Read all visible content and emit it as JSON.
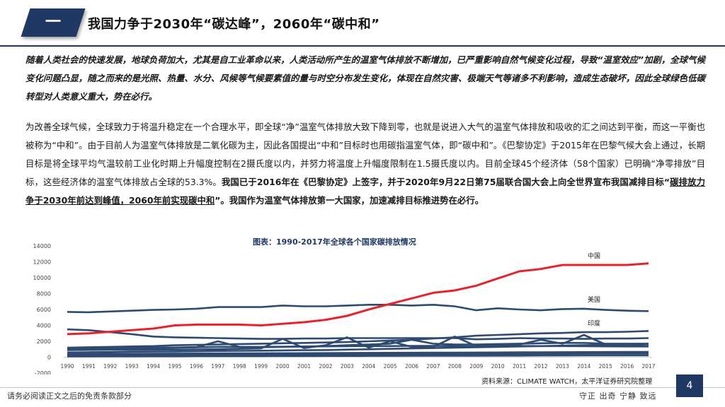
{
  "header": {
    "badge": "一",
    "title": "我国力争于2030年“碳达峰”，2060年“碳中和”"
  },
  "paragraph1": "随着人类社会的快速发展，地球负荷加大，尤其是自工业革命以来，人类活动所产生的温室气体排放不断增加，已严重影响自然气候变化过程，导致“温室效应”加剧，全球气候变化问题凸显，随之而来的是光照、热量、水分、风候等气候要素值的量与时空分布发生变化，体现在自然灾害、极端天气等诸多不利影响，造成生态破坏，因此全球绿色低碳转型对人类意义重大，势在必行。",
  "paragraph2": {
    "normal": "为改善全球气候，全球致力于将温升稳定在一个合理水平，即全球“净”温室气体排放大致下降到零，也就是说进入大气的温室气体排放和吸收的汇之间达到平衡，而这一平衡也被称为“中和”。由于目前人为温室气体排放是二氧化碳为主，因此各国提出“中和”目标时也用碳指温室气体，即“碳中和”。《巴黎协定》于2015年在巴黎气候大会上通过，长期目标是将全球平均气温较前工业化时期上升幅度控制在2摄氏度以内，并努力将温度上升幅度限制在1.5摄氏度以内。目前全球45个经济体（58个国家）已明确“净零排放”目标，这些经济体的温室气体排放占全球的53.3%。",
    "bold": "我国已于2016年在《巴黎协定》上签字，并于2020年9月22日第75届联合国大会上向全世界宣布我国减排目标“",
    "underline": "碳排放力争于2030年前达到峰值，2060年前实现碳中和",
    "bold_end": "”。我国作为温室气体排放第一大国家，加速减排目标推进势在必行。"
  },
  "chart_data": {
    "type": "line",
    "title": "图表：1990-2017年全球各个国家碳排放情况",
    "xlabel": "",
    "ylabel": "",
    "ylim": [
      -2000,
      14000
    ],
    "yticks": [
      -2000,
      0,
      2000,
      4000,
      6000,
      8000,
      10000,
      12000,
      14000
    ],
    "x": [
      "1990",
      "1991",
      "1992",
      "1993",
      "1994",
      "1995",
      "1996",
      "1997",
      "1998",
      "1999",
      "2000",
      "2001",
      "2002",
      "2003",
      "2004",
      "2005",
      "2006",
      "2007",
      "2008",
      "2009",
      "2010",
      "2011",
      "2012",
      "2013",
      "2014",
      "2015",
      "2016",
      "2017"
    ],
    "grid": false,
    "series": [
      {
        "name": "中国",
        "color": "#e8222a",
        "label": "中国",
        "values": [
          2900,
          3000,
          3200,
          3400,
          3600,
          4000,
          4100,
          4100,
          4100,
          4000,
          4200,
          4400,
          4700,
          5200,
          6000,
          6700,
          7400,
          8100,
          8400,
          9000,
          9900,
          10800,
          11100,
          11600,
          11600,
          11600,
          11600,
          11800
        ]
      },
      {
        "name": "美国",
        "color": "#2e4a70",
        "label": "美国",
        "values": [
          5700,
          5650,
          5750,
          5850,
          5950,
          6000,
          6100,
          6300,
          6300,
          6300,
          6500,
          6400,
          6400,
          6500,
          6600,
          6600,
          6500,
          6600,
          6400,
          5900,
          6150,
          6000,
          5900,
          6050,
          6100,
          5950,
          5850,
          5800
        ]
      },
      {
        "name": "印度",
        "color": "#2e4a70",
        "label": "印度",
        "values": [
          1200,
          1250,
          1300,
          1350,
          1400,
          1500,
          1550,
          1600,
          1650,
          1700,
          1750,
          1800,
          1850,
          1900,
          2000,
          2100,
          2200,
          2350,
          2500,
          2700,
          2800,
          2900,
          3000,
          3050,
          3150,
          3150,
          3200,
          3300
        ]
      },
      {
        "name": "",
        "color": "#2e4a70",
        "label": "",
        "values": [
          3500,
          3400,
          3150,
          2900,
          2600,
          2500,
          2450,
          2400,
          2350,
          2300,
          2300,
          2350,
          2350,
          2400,
          2400,
          2400,
          2400,
          2400,
          2400,
          2250,
          2300,
          2400,
          2350,
          2350,
          2300,
          2350,
          2350,
          2400
        ]
      },
      {
        "name": "",
        "color": "#2e4a70",
        "label": "",
        "values": [
          1100,
          1120,
          1150,
          1180,
          1200,
          1220,
          1250,
          1300,
          1300,
          1300,
          1320,
          1340,
          1360,
          1380,
          1400,
          1400,
          1420,
          1420,
          1400,
          1380,
          1400,
          1420,
          1400,
          1400,
          1380,
          1360,
          1350,
          1350
        ]
      },
      {
        "name": "",
        "color": "#2e4a70",
        "label": "",
        "values": [
          1000,
          1050,
          1100,
          1100,
          1150,
          1200,
          1250,
          2000,
          1300,
          1250,
          1300,
          1350,
          1400,
          1500,
          1600,
          1700,
          2200,
          1700,
          1600,
          1600,
          1650,
          1700,
          1750,
          1800,
          1800,
          1700,
          1700,
          1700
        ]
      },
      {
        "name": "",
        "color": "#2e4a70",
        "label": "",
        "values": [
          900,
          920,
          930,
          940,
          950,
          960,
          980,
          1000,
          1050,
          1100,
          2300,
          1150,
          1500,
          2500,
          1200,
          2000,
          1300,
          1300,
          2600,
          1400,
          1500,
          1600,
          2200,
          1700,
          2800,
          1600,
          1500,
          1400
        ]
      },
      {
        "name": "",
        "color": "#2e4a70",
        "label": "",
        "values": [
          600,
          620,
          650,
          680,
          700,
          720,
          750,
          780,
          800,
          820,
          850,
          880,
          900,
          950,
          1000,
          1050,
          1100,
          1150,
          1200,
          1250,
          1300,
          1350,
          1400,
          1450,
          1500,
          1550,
          1600,
          1650
        ]
      },
      {
        "name": "",
        "color": "#2e4a70",
        "label": "",
        "values": [
          400,
          410,
          420,
          430,
          440,
          450,
          460,
          470,
          480,
          490,
          500,
          510,
          520,
          530,
          540,
          550,
          560,
          570,
          580,
          590,
          600,
          610,
          620,
          630,
          640,
          650,
          660,
          670
        ]
      },
      {
        "name": "",
        "color": "#2e4a70",
        "label": "",
        "values": [
          200,
          210,
          220,
          230,
          240,
          250,
          260,
          270,
          280,
          290,
          300,
          310,
          320,
          330,
          340,
          350,
          360,
          370,
          380,
          390,
          400,
          410,
          420,
          430,
          440,
          450,
          460,
          470
        ]
      },
      {
        "name": "",
        "color": "#2e4a70",
        "label": "",
        "values": [
          100,
          100,
          110,
          110,
          120,
          120,
          130,
          130,
          140,
          140,
          150,
          150,
          160,
          160,
          170,
          170,
          180,
          180,
          190,
          190,
          200,
          200,
          210,
          210,
          220,
          220,
          230,
          230
        ]
      }
    ],
    "source": "资料来源：CLIMATE WATCH，太平洋证券研究院整理"
  },
  "footer": {
    "left": "请务必阅读正文之后的免责条款部分",
    "right": "守正  出奇  宁静  致远",
    "page": "4"
  }
}
